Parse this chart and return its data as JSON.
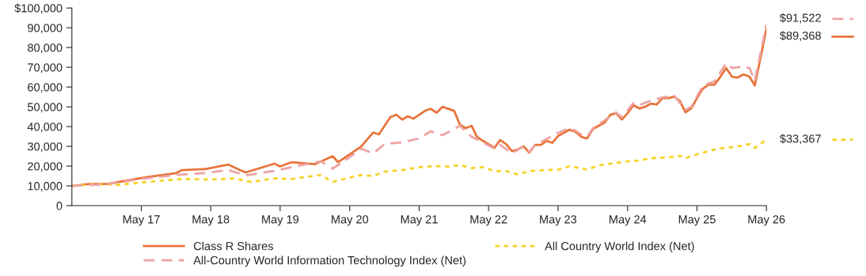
{
  "chart_data": {
    "type": "line",
    "xlim": [
      "2016-05",
      "2026-05"
    ],
    "xticks": [
      {
        "value": "2017-05",
        "label": "May 17"
      },
      {
        "value": "2018-05",
        "label": "May 18"
      },
      {
        "value": "2019-05",
        "label": "May 19"
      },
      {
        "value": "2020-05",
        "label": "May 20"
      },
      {
        "value": "2021-05",
        "label": "May 21"
      },
      {
        "value": "2022-05",
        "label": "May 22"
      },
      {
        "value": "2023-05",
        "label": "May 23"
      },
      {
        "value": "2024-05",
        "label": "May 24"
      },
      {
        "value": "2025-05",
        "label": "May 25"
      },
      {
        "value": "2026-05",
        "label": "May 26"
      }
    ],
    "ylim": [
      0,
      100000
    ],
    "yticks": [
      0,
      {
        "value": 10000,
        "label": "10,000"
      },
      {
        "value": 20000,
        "label": "20,000"
      },
      {
        "value": 30000,
        "label": "30,000"
      },
      {
        "value": 40000,
        "label": "40,000"
      },
      {
        "value": 50000,
        "label": "50,000"
      },
      {
        "value": 60000,
        "label": "60,000"
      },
      {
        "value": 70000,
        "label": "70,000"
      },
      {
        "value": 80000,
        "label": "80,000"
      },
      {
        "value": 90000,
        "label": "90,000"
      },
      {
        "value": 100000,
        "label": "$100,000"
      }
    ],
    "grid": false,
    "legend": "bottom",
    "series": [
      {
        "name": "Class R Shares",
        "color": "#e8743b",
        "line_style": "solid",
        "x": [
          "2016-05",
          "2016-08",
          "2016-11",
          "2017-02",
          "2017-06",
          "2017-11",
          "2017-12",
          "2018-04",
          "2018-08",
          "2018-10",
          "2018-11",
          "2019-04",
          "2019-05",
          "2019-07",
          "2019-11",
          "2020-02",
          "2020-03",
          "2020-07",
          "2020-09",
          "2020-10",
          "2020-12",
          "2021-01",
          "2021-02",
          "2021-03",
          "2021-04",
          "2021-06",
          "2021-07",
          "2021-08",
          "2021-09",
          "2021-11",
          "2021-12",
          "2022-01",
          "2022-02",
          "2022-03",
          "2022-04",
          "2022-06",
          "2022-07",
          "2022-08",
          "2022-09",
          "2022-10",
          "2022-11",
          "2022-12",
          "2023-01",
          "2023-02",
          "2023-03",
          "2023-04",
          "2023-05",
          "2023-07",
          "2023-08",
          "2023-09",
          "2023-10",
          "2023-11",
          "2024-01",
          "2024-02",
          "2024-03",
          "2024-04",
          "2024-05",
          "2024-06",
          "2024-07",
          "2024-08",
          "2024-09",
          "2024-10",
          "2024-11",
          "2024-12",
          "2025-01",
          "2025-02",
          "2025-03",
          "2025-04",
          "2025-05",
          "2025-06",
          "2025-07",
          "2025-08",
          "2025-09",
          "2025-10",
          "2025-11",
          "2025-12",
          "2026-01",
          "2026-02",
          "2026-03",
          "2026-05"
        ],
        "values": [
          10000,
          11000,
          11000,
          12500,
          14500,
          16500,
          18000,
          18500,
          20800,
          18000,
          16800,
          21200,
          19800,
          22000,
          21000,
          25000,
          22000,
          30000,
          37000,
          36000,
          44800,
          46000,
          43500,
          45200,
          44000,
          48000,
          49000,
          47000,
          50000,
          48000,
          41000,
          39200,
          40400,
          34800,
          32800,
          29200,
          33200,
          31200,
          27600,
          28400,
          30000,
          26800,
          30800,
          30800,
          32800,
          31800,
          35200,
          38400,
          37300,
          34800,
          34000,
          38800,
          42000,
          46000,
          46800,
          43600,
          46800,
          50800,
          49200,
          50000,
          51600,
          51200,
          54400,
          54400,
          55200,
          52800,
          47200,
          49200,
          54400,
          59200,
          61200,
          61200,
          65200,
          69600,
          65200,
          64800,
          66400,
          65200,
          60800,
          89368
        ]
      },
      {
        "name": "All Country World Index (Net)",
        "color": "#f5d327",
        "line_style": "dotted",
        "x": [
          "2016-05",
          "2016-09",
          "2017-01",
          "2017-06",
          "2017-12",
          "2018-05",
          "2018-09",
          "2018-12",
          "2019-04",
          "2019-07",
          "2019-12",
          "2020-02",
          "2020-04",
          "2020-07",
          "2020-09",
          "2020-11",
          "2021-02",
          "2021-05",
          "2021-08",
          "2021-10",
          "2021-12",
          "2022-02",
          "2022-04",
          "2022-06",
          "2022-08",
          "2022-10",
          "2022-12",
          "2023-03",
          "2023-05",
          "2023-07",
          "2023-10",
          "2023-12",
          "2024-03",
          "2024-05",
          "2024-07",
          "2024-09",
          "2024-12",
          "2025-02",
          "2025-03",
          "2025-05",
          "2025-07",
          "2025-09",
          "2025-11",
          "2026-01",
          "2026-02",
          "2026-03",
          "2026-05"
        ],
        "values": [
          10000,
          10800,
          10500,
          12000,
          13500,
          13200,
          13800,
          12000,
          13800,
          13500,
          15500,
          12000,
          13500,
          15500,
          15000,
          17200,
          18000,
          19500,
          20000,
          19800,
          20500,
          19000,
          19500,
          17500,
          17500,
          15800,
          17500,
          18000,
          18200,
          20000,
          18200,
          20400,
          21600,
          22400,
          22800,
          24000,
          24400,
          25200,
          24000,
          26000,
          27600,
          29000,
          29600,
          30400,
          31200,
          29200,
          33367
        ]
      },
      {
        "name": "All-Country World Information Technology Index (Net)",
        "color": "#eda3a3",
        "line_style": "dashed",
        "x": [
          "2016-05",
          "2016-11",
          "2017-05",
          "2017-11",
          "2018-04",
          "2018-08",
          "2018-11",
          "2019-04",
          "2019-07",
          "2019-12",
          "2020-02",
          "2020-04",
          "2020-07",
          "2020-09",
          "2020-11",
          "2021-02",
          "2021-05",
          "2021-07",
          "2021-09",
          "2021-12",
          "2022-02",
          "2022-04",
          "2022-06",
          "2022-07",
          "2022-09",
          "2022-11",
          "2022-12",
          "2023-01",
          "2023-03",
          "2023-05",
          "2023-07",
          "2023-08",
          "2023-09",
          "2023-10",
          "2023-11",
          "2024-01",
          "2024-03",
          "2024-04",
          "2024-06",
          "2024-07",
          "2024-09",
          "2024-11",
          "2025-01",
          "2025-03",
          "2025-04",
          "2025-06",
          "2025-08",
          "2025-10",
          "2025-11",
          "2026-01",
          "2026-02",
          "2026-03",
          "2026-05"
        ],
        "values": [
          10000,
          10800,
          13500,
          15500,
          16500,
          18000,
          15300,
          17600,
          19500,
          22400,
          18700,
          22500,
          28800,
          26400,
          31200,
          32000,
          34000,
          37600,
          35600,
          40400,
          34800,
          32000,
          28800,
          30800,
          26400,
          30000,
          27200,
          30800,
          33600,
          36800,
          39200,
          38000,
          36000,
          34800,
          39200,
          43200,
          47200,
          44800,
          52000,
          50800,
          53200,
          54800,
          55600,
          48400,
          50000,
          60800,
          62800,
          72000,
          69600,
          70400,
          69600,
          63200,
          91522
        ]
      }
    ],
    "annotations": [
      {
        "text": "$91,522",
        "x": "2026-05",
        "y": 91522
      },
      {
        "text": "$89,368",
        "x": "2026-05",
        "y": 89368
      },
      {
        "text": "$33,367",
        "x": "2026-05",
        "y": 33367
      }
    ]
  }
}
